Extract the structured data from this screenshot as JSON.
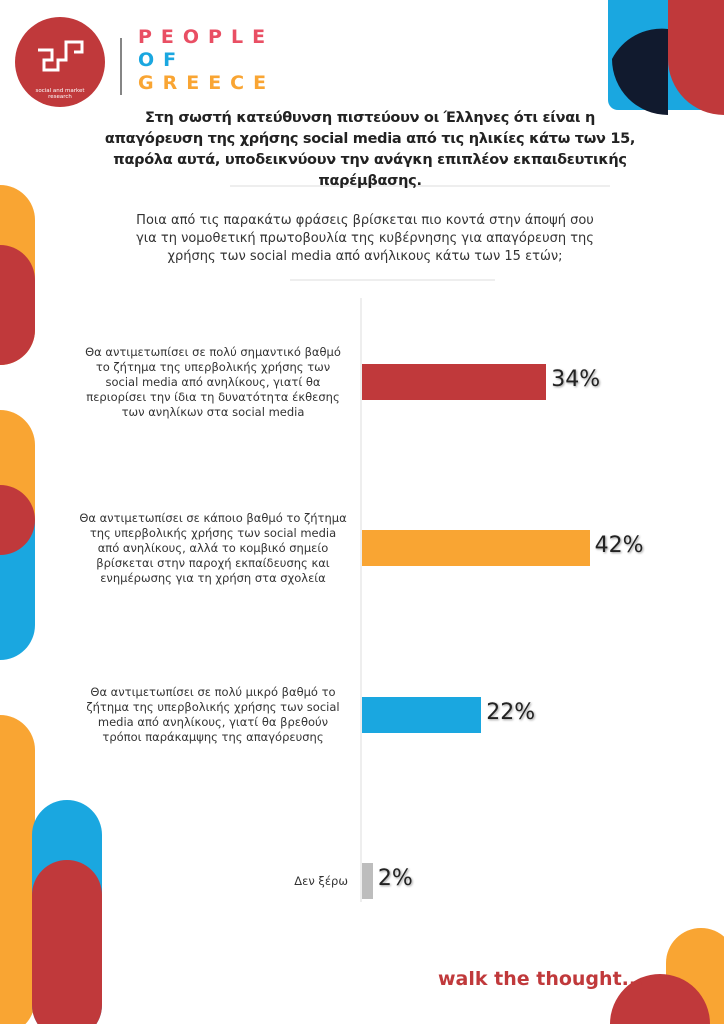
{
  "branding": {
    "logo_text": "social and market research",
    "brand_lines": [
      "PEOPLE",
      "OF",
      "GREECE"
    ],
    "tagline": "walk the thought..."
  },
  "chart_data": {
    "type": "bar",
    "orientation": "horizontal",
    "title": "Στη σωστή κατεύθυνση πιστεύουν οι Έλληνες ότι είναι η απαγόρευση της χρήσης social media από τις ηλικίες κάτω των 15, παρόλα αυτά, υποδεικνύουν την ανάγκη επιπλέον εκπαιδευτικής παρέμβασης.",
    "subtitle": "Ποια από τις παρακάτω φράσεις βρίσκεται πιο κοντά στην άποψή σου για τη νομοθετική πρωτοβουλία της κυβέρνησης για απαγόρευση της χρήσης των social media από ανήλικους κάτω των 15 ετών;",
    "categories": [
      "Θα αντιμετωπίσει σε πολύ σημαντικό βαθμό το ζήτημα της υπερβολικής χρήσης των social media από ανηλίκους, γιατί θα περιορίσει την ίδια τη δυνατότητα έκθεσης των ανηλίκων στα social media",
      "Θα αντιμετωπίσει σε κάποιο βαθμό το ζήτημα της υπερβολικής χρήσης των social media από ανηλίκους, αλλά το κομβικό σημείο βρίσκεται στην παροχή εκπαίδευσης και ενημέρωσης για τη χρήση στα σχολεία",
      "Θα αντιμετωπίσει σε πολύ μικρό βαθμό το ζήτημα της υπερβολικής χρήσης των social media από ανηλίκους, γιατί θα βρεθούν τρόποι παράκαμψης της απαγόρευσης",
      "Δεν ξέρω"
    ],
    "values": [
      34,
      42,
      22,
      2
    ],
    "value_labels": [
      "34%",
      "42%",
      "22%",
      "2%"
    ],
    "colors": [
      "#c0393b",
      "#f9a533",
      "#1aa7e0",
      "#bdbdbd"
    ]
  }
}
